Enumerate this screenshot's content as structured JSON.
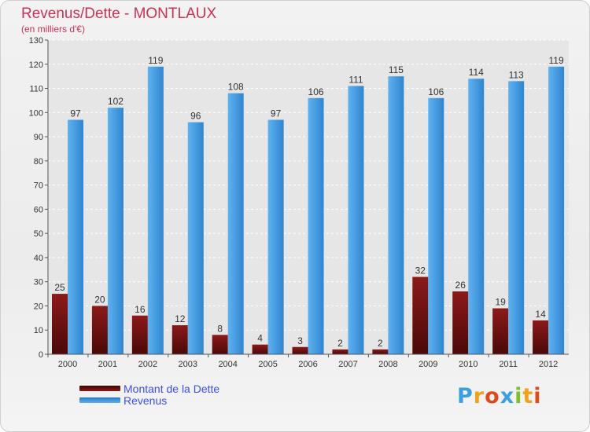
{
  "chart_data": {
    "type": "bar",
    "title": "Revenus/Dette - MONTLAUX",
    "subtitle": "(en milliers d'€)",
    "categories": [
      "2000",
      "2001",
      "2002",
      "2003",
      "2004",
      "2005",
      "2006",
      "2007",
      "2008",
      "2009",
      "2010",
      "2011",
      "2012"
    ],
    "series": [
      {
        "name": "Montant de la Dette",
        "values": [
          25,
          20,
          16,
          12,
          8,
          4,
          3,
          2,
          2,
          32,
          26,
          19,
          14
        ],
        "color": "#7a1414"
      },
      {
        "name": "Revenus",
        "values": [
          97,
          102,
          119,
          96,
          108,
          97,
          106,
          111,
          115,
          106,
          114,
          113,
          119
        ],
        "color": "#3d97e0"
      }
    ],
    "ylim": [
      0,
      130
    ],
    "yticks": [
      0,
      10,
      20,
      30,
      40,
      50,
      60,
      70,
      80,
      90,
      100,
      110,
      120,
      130
    ],
    "grid": true,
    "legend": "bottom-left"
  },
  "logo": {
    "text": "Proxiti",
    "colors": [
      "#3aa0e0",
      "#f2a21a",
      "#e04a1a",
      "#3aa0e0",
      "#7fbf2a",
      "#f2a21a",
      "#e04a1a"
    ]
  },
  "colors": {
    "title": "#c8325a",
    "axis_text": "#333333",
    "grid": "#ffffff"
  }
}
